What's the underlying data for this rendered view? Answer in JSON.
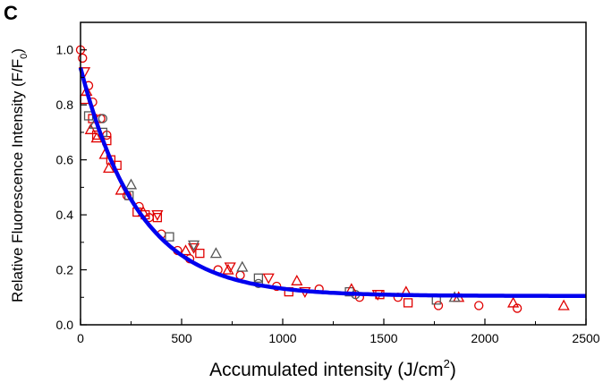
{
  "chart_data": {
    "type": "scatter",
    "panel_label": "C",
    "xlabel": "Accumulated intensity (J/cm",
    "xlabel_sup": "2",
    "xlabel_end": ")",
    "ylabel": "Relative Fluorescence Intensity (F/F",
    "ylabel_sub": "0",
    "ylabel_end": ")",
    "xlim": [
      0,
      2500
    ],
    "ylim": [
      0,
      1.1
    ],
    "xticks": [
      0,
      500,
      1000,
      1500,
      2000,
      2500
    ],
    "xtick_labels": [
      "0",
      "500",
      "1000",
      "1500",
      "2000",
      "2500"
    ],
    "yticks": [
      0,
      0.2,
      0.4,
      0.6,
      0.8,
      1.0
    ],
    "ytick_labels": [
      "0.0",
      "0.2",
      "0.4",
      "0.6",
      "0.8",
      "1.0"
    ],
    "grid": false,
    "fit": {
      "type": "exponential decay",
      "y0": 0.105,
      "A": 0.83,
      "t": 290,
      "color": "#0000ee"
    },
    "series": [
      {
        "name": "circles-red",
        "marker": "circle",
        "color": "#e00000",
        "points": [
          [
            0,
            1.0
          ],
          [
            10,
            0.97
          ],
          [
            40,
            0.87
          ],
          [
            60,
            0.81
          ],
          [
            100,
            0.75
          ],
          [
            130,
            0.69
          ],
          [
            230,
            0.47
          ],
          [
            290,
            0.43
          ],
          [
            340,
            0.39
          ],
          [
            400,
            0.33
          ],
          [
            480,
            0.27
          ],
          [
            540,
            0.24
          ],
          [
            680,
            0.2
          ],
          [
            790,
            0.18
          ],
          [
            970,
            0.14
          ],
          [
            1180,
            0.13
          ],
          [
            1380,
            0.1
          ],
          [
            1570,
            0.1
          ],
          [
            1770,
            0.07
          ],
          [
            1970,
            0.07
          ],
          [
            2160,
            0.06
          ]
        ]
      },
      {
        "name": "circles-gray",
        "marker": "circle",
        "color": "#555555",
        "points": [
          [
            110,
            0.75
          ],
          [
            880,
            0.15
          ],
          [
            1360,
            0.11
          ]
        ]
      },
      {
        "name": "squares-red",
        "marker": "square",
        "color": "#e00000",
        "points": [
          [
            20,
            0.82
          ],
          [
            60,
            0.75
          ],
          [
            80,
            0.69
          ],
          [
            130,
            0.67
          ],
          [
            150,
            0.6
          ],
          [
            180,
            0.58
          ],
          [
            280,
            0.41
          ],
          [
            320,
            0.4
          ],
          [
            380,
            0.39
          ],
          [
            590,
            0.26
          ],
          [
            1030,
            0.12
          ],
          [
            1480,
            0.11
          ],
          [
            1620,
            0.08
          ]
        ]
      },
      {
        "name": "squares-gray",
        "marker": "square",
        "color": "#555555",
        "points": [
          [
            40,
            0.76
          ],
          [
            110,
            0.7
          ],
          [
            240,
            0.47
          ],
          [
            440,
            0.32
          ],
          [
            880,
            0.17
          ],
          [
            1330,
            0.12
          ],
          [
            1760,
            0.09
          ]
        ]
      },
      {
        "name": "triangles-red",
        "marker": "triangle-up",
        "color": "#e00000",
        "points": [
          [
            30,
            0.85
          ],
          [
            50,
            0.71
          ],
          [
            80,
            0.68
          ],
          [
            120,
            0.62
          ],
          [
            140,
            0.57
          ],
          [
            200,
            0.49
          ],
          [
            310,
            0.41
          ],
          [
            520,
            0.27
          ],
          [
            730,
            0.2
          ],
          [
            1070,
            0.16
          ],
          [
            1340,
            0.13
          ],
          [
            1610,
            0.12
          ],
          [
            1870,
            0.1
          ],
          [
            2140,
            0.08
          ],
          [
            2390,
            0.07
          ]
        ]
      },
      {
        "name": "triangles-gray",
        "marker": "triangle-up",
        "color": "#555555",
        "points": [
          [
            70,
            0.73
          ],
          [
            250,
            0.51
          ],
          [
            670,
            0.26
          ],
          [
            800,
            0.21
          ],
          [
            1850,
            0.1
          ]
        ]
      },
      {
        "name": "down-triangles-red",
        "marker": "triangle-down",
        "color": "#e00000",
        "points": [
          [
            20,
            0.92
          ],
          [
            380,
            0.4
          ],
          [
            560,
            0.28
          ],
          [
            740,
            0.21
          ],
          [
            930,
            0.17
          ],
          [
            1110,
            0.12
          ],
          [
            1470,
            0.11
          ]
        ]
      },
      {
        "name": "down-triangles-gray",
        "marker": "triangle-down",
        "color": "#555555",
        "points": [
          [
            560,
            0.29
          ]
        ]
      }
    ]
  }
}
